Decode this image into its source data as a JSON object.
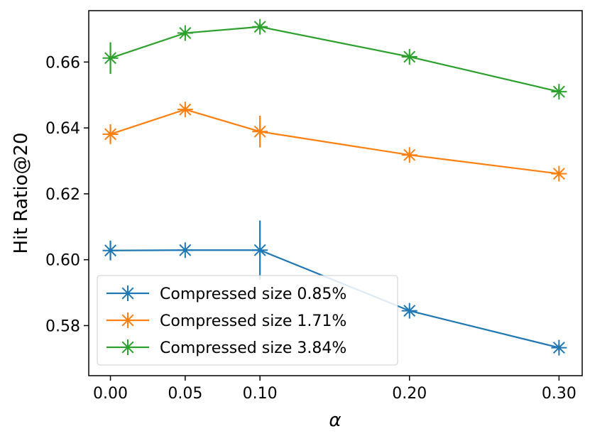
{
  "chart_data": {
    "type": "line",
    "title": "",
    "xlabel": "α",
    "ylabel": "Hit Ratio@20",
    "x": [
      0.0,
      0.05,
      0.1,
      0.2,
      0.3
    ],
    "x_tick_labels": [
      "0.00",
      "0.05",
      "0.10",
      "0.20",
      "0.30"
    ],
    "y_ticks": [
      0.58,
      0.6,
      0.62,
      0.64,
      0.66
    ],
    "y_tick_labels": [
      "0.58",
      "0.60",
      "0.62",
      "0.64",
      "0.66"
    ],
    "xlim": [
      -0.0145,
      0.3155
    ],
    "ylim": [
      0.5648,
      0.6756
    ],
    "grid": false,
    "legend_position": "lower-left",
    "series": [
      {
        "name": "Compressed size 0.85%",
        "color": "#1f77b4",
        "values": [
          0.6028,
          0.6029,
          0.6029,
          0.5845,
          0.5733
        ],
        "errors": [
          0.003,
          0.0005,
          0.009,
          0.001,
          0.001
        ]
      },
      {
        "name": "Compressed size 1.71%",
        "color": "#ff7f0e",
        "values": [
          0.6381,
          0.6456,
          0.6389,
          0.6318,
          0.6261
        ],
        "errors": [
          0.003,
          0.001,
          0.0048,
          0.001,
          0.001
        ]
      },
      {
        "name": "Compressed size 3.84%",
        "color": "#2ca02c",
        "values": [
          0.6612,
          0.6688,
          0.6707,
          0.6616,
          0.651
        ],
        "errors": [
          0.0048,
          0.001,
          0.001,
          0.001,
          0.0015
        ]
      }
    ]
  }
}
